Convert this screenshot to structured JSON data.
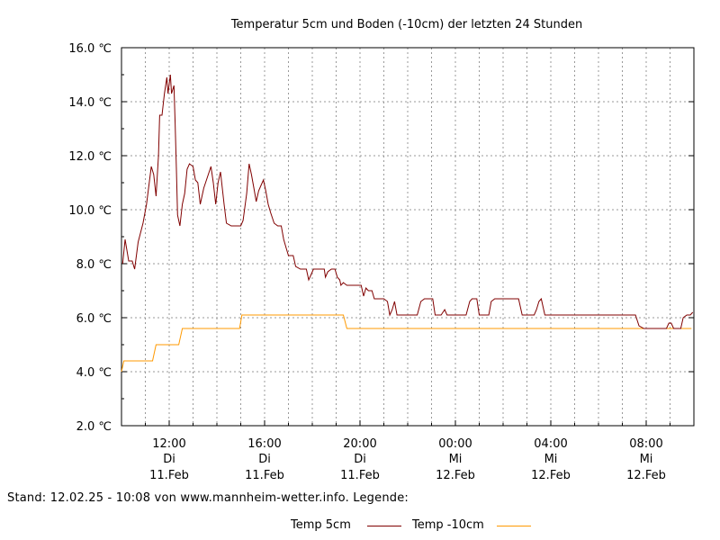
{
  "chart_data": {
    "type": "line",
    "title": "Temperatur 5cm und Boden (-10cm) der letzten 24 Stunden",
    "ylim": [
      2.0,
      16.0
    ],
    "y_ticks": [
      "2.0 ℃",
      "4.0 ℃",
      "6.0 ℃",
      "8.0 ℃",
      "10.0 ℃",
      "12.0 ℃",
      "14.0 ℃",
      "16.0 ℃"
    ],
    "x_range_hours": [
      10.0,
      34.0
    ],
    "x_ticks": [
      {
        "hour": 12,
        "time": "12:00",
        "day": "Di",
        "date": "11.Feb"
      },
      {
        "hour": 16,
        "time": "16:00",
        "day": "Di",
        "date": "11.Feb"
      },
      {
        "hour": 20,
        "time": "20:00",
        "day": "Di",
        "date": "11.Feb"
      },
      {
        "hour": 24,
        "time": "00:00",
        "day": "Mi",
        "date": "12.Feb"
      },
      {
        "hour": 28,
        "time": "04:00",
        "day": "Mi",
        "date": "12.Feb"
      },
      {
        "hour": 32,
        "time": "08:00",
        "day": "Mi",
        "date": "12.Feb"
      }
    ],
    "grid": true,
    "series": [
      {
        "name": "Temp 5cm",
        "color": "#800000",
        "points": [
          [
            10.05,
            8.0
          ],
          [
            10.15,
            8.9
          ],
          [
            10.3,
            8.1
          ],
          [
            10.45,
            8.1
          ],
          [
            10.55,
            7.8
          ],
          [
            10.7,
            8.8
          ],
          [
            10.9,
            9.5
          ],
          [
            11.05,
            10.2
          ],
          [
            11.25,
            11.6
          ],
          [
            11.35,
            11.3
          ],
          [
            11.45,
            10.5
          ],
          [
            11.55,
            12.0
          ],
          [
            11.6,
            13.5
          ],
          [
            11.7,
            13.5
          ],
          [
            11.8,
            14.3
          ],
          [
            11.9,
            14.9
          ],
          [
            11.95,
            14.3
          ],
          [
            12.05,
            15.0
          ],
          [
            12.1,
            14.3
          ],
          [
            12.2,
            14.6
          ],
          [
            12.25,
            13.2
          ],
          [
            12.3,
            11.5
          ],
          [
            12.35,
            9.8
          ],
          [
            12.45,
            9.4
          ],
          [
            12.55,
            10.2
          ],
          [
            12.65,
            10.6
          ],
          [
            12.75,
            11.5
          ],
          [
            12.85,
            11.7
          ],
          [
            13.0,
            11.6
          ],
          [
            13.1,
            11.1
          ],
          [
            13.2,
            11.0
          ],
          [
            13.3,
            10.2
          ],
          [
            13.45,
            10.8
          ],
          [
            13.6,
            11.2
          ],
          [
            13.75,
            11.6
          ],
          [
            13.85,
            11.0
          ],
          [
            13.95,
            10.2
          ],
          [
            14.05,
            11.0
          ],
          [
            14.15,
            11.4
          ],
          [
            14.3,
            10.2
          ],
          [
            14.4,
            9.5
          ],
          [
            14.6,
            9.4
          ],
          [
            14.8,
            9.4
          ],
          [
            15.0,
            9.4
          ],
          [
            15.1,
            9.6
          ],
          [
            15.25,
            10.6
          ],
          [
            15.35,
            11.7
          ],
          [
            15.45,
            11.3
          ],
          [
            15.55,
            10.8
          ],
          [
            15.65,
            10.3
          ],
          [
            15.75,
            10.7
          ],
          [
            15.85,
            10.9
          ],
          [
            15.95,
            11.1
          ],
          [
            16.05,
            10.7
          ],
          [
            16.15,
            10.2
          ],
          [
            16.25,
            9.9
          ],
          [
            16.4,
            9.5
          ],
          [
            16.55,
            9.4
          ],
          [
            16.7,
            9.4
          ],
          [
            16.8,
            8.9
          ],
          [
            16.9,
            8.6
          ],
          [
            17.0,
            8.3
          ],
          [
            17.2,
            8.3
          ],
          [
            17.3,
            7.9
          ],
          [
            17.5,
            7.8
          ],
          [
            17.75,
            7.8
          ],
          [
            17.85,
            7.4
          ],
          [
            17.95,
            7.6
          ],
          [
            18.05,
            7.8
          ],
          [
            18.35,
            7.8
          ],
          [
            18.5,
            7.8
          ],
          [
            18.55,
            7.5
          ],
          [
            18.65,
            7.7
          ],
          [
            18.8,
            7.8
          ],
          [
            18.95,
            7.8
          ],
          [
            19.05,
            7.5
          ],
          [
            19.15,
            7.4
          ],
          [
            19.2,
            7.2
          ],
          [
            19.3,
            7.3
          ],
          [
            19.45,
            7.2
          ],
          [
            19.65,
            7.2
          ],
          [
            19.85,
            7.2
          ],
          [
            20.05,
            7.2
          ],
          [
            20.15,
            6.8
          ],
          [
            20.25,
            7.1
          ],
          [
            20.35,
            7.0
          ],
          [
            20.5,
            7.0
          ],
          [
            20.6,
            6.7
          ],
          [
            20.8,
            6.7
          ],
          [
            21.0,
            6.7
          ],
          [
            21.15,
            6.6
          ],
          [
            21.25,
            6.1
          ],
          [
            21.35,
            6.3
          ],
          [
            21.45,
            6.6
          ],
          [
            21.55,
            6.1
          ],
          [
            21.75,
            6.1
          ],
          [
            22.0,
            6.1
          ],
          [
            22.25,
            6.1
          ],
          [
            22.4,
            6.1
          ],
          [
            22.55,
            6.6
          ],
          [
            22.7,
            6.7
          ],
          [
            22.9,
            6.7
          ],
          [
            23.05,
            6.7
          ],
          [
            23.15,
            6.1
          ],
          [
            23.4,
            6.1
          ],
          [
            23.55,
            6.3
          ],
          [
            23.65,
            6.1
          ],
          [
            23.8,
            6.1
          ],
          [
            24.0,
            6.1
          ],
          [
            24.25,
            6.1
          ],
          [
            24.45,
            6.1
          ],
          [
            24.6,
            6.6
          ],
          [
            24.7,
            6.7
          ],
          [
            24.9,
            6.7
          ],
          [
            25.0,
            6.1
          ],
          [
            25.2,
            6.1
          ],
          [
            25.4,
            6.1
          ],
          [
            25.5,
            6.6
          ],
          [
            25.65,
            6.7
          ],
          [
            25.85,
            6.7
          ],
          [
            26.05,
            6.7
          ],
          [
            26.35,
            6.7
          ],
          [
            26.65,
            6.7
          ],
          [
            26.8,
            6.1
          ],
          [
            27.0,
            6.1
          ],
          [
            27.3,
            6.1
          ],
          [
            27.4,
            6.3
          ],
          [
            27.5,
            6.6
          ],
          [
            27.6,
            6.7
          ],
          [
            27.75,
            6.1
          ],
          [
            28.0,
            6.1
          ],
          [
            29.0,
            6.1
          ],
          [
            30.0,
            6.1
          ],
          [
            31.0,
            6.1
          ],
          [
            31.55,
            6.1
          ],
          [
            31.7,
            5.7
          ],
          [
            31.9,
            5.6
          ],
          [
            32.2,
            5.6
          ],
          [
            32.5,
            5.6
          ],
          [
            32.7,
            5.6
          ],
          [
            32.85,
            5.6
          ],
          [
            32.95,
            5.8
          ],
          [
            33.05,
            5.8
          ],
          [
            33.15,
            5.6
          ],
          [
            33.3,
            5.6
          ],
          [
            33.45,
            5.6
          ],
          [
            33.55,
            6.0
          ],
          [
            33.7,
            6.1
          ],
          [
            33.85,
            6.1
          ],
          [
            33.95,
            6.2
          ]
        ]
      },
      {
        "name": "Temp -10cm",
        "color": "#ff9900",
        "points": [
          [
            10.0,
            4.0
          ],
          [
            10.1,
            4.4
          ],
          [
            11.3,
            4.4
          ],
          [
            11.45,
            5.0
          ],
          [
            12.4,
            5.0
          ],
          [
            12.55,
            5.6
          ],
          [
            14.95,
            5.6
          ],
          [
            15.05,
            6.1
          ],
          [
            19.3,
            6.1
          ],
          [
            19.45,
            5.6
          ],
          [
            33.9,
            5.6
          ]
        ]
      }
    ]
  },
  "footer": {
    "status": "Stand: 12.02.25 - 10:08 von www.mannheim-wetter.info. Legende:"
  },
  "legend": {
    "items": [
      {
        "label": "Temp 5cm",
        "color": "#800000"
      },
      {
        "label": "Temp -10cm",
        "color": "#ff9900"
      }
    ]
  }
}
